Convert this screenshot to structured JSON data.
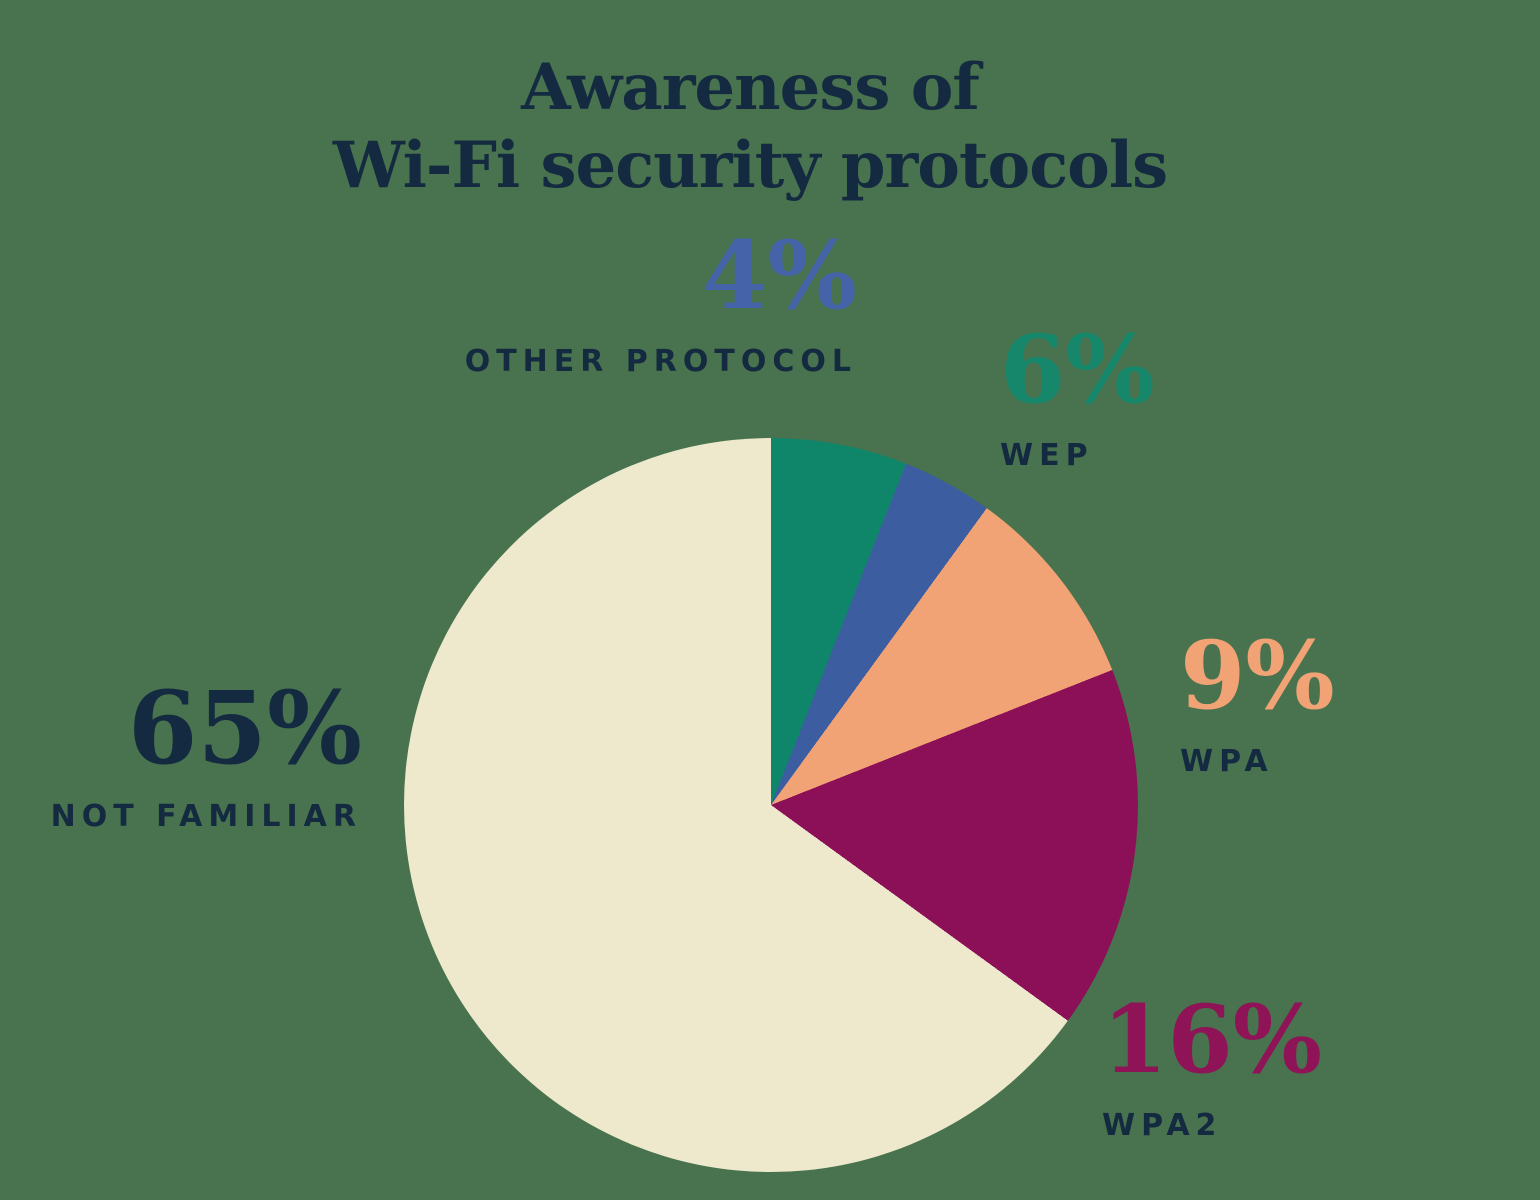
{
  "background_color": "#48734E",
  "label_color": "#132A40",
  "title": {
    "line1": "Awareness of",
    "line2": "Wi-Fi security protocols",
    "color": "#132A40"
  },
  "chart_data": {
    "type": "pie",
    "title": "Awareness of Wi-Fi security protocols",
    "start_angle_deg": 0,
    "direction": "clockwise",
    "legend_position": "around-pie",
    "slices": [
      {
        "label": "WEP",
        "value_pct": 6,
        "color": "#0F8569"
      },
      {
        "label": "OTHER PROTOCOL",
        "value_pct": 4,
        "color": "#3C5DA0"
      },
      {
        "label": "WPA",
        "value_pct": 9,
        "color": "#F2A376"
      },
      {
        "label": "WPA2",
        "value_pct": 16,
        "color": "#8B1057"
      },
      {
        "label": "NOT FAMILIAR",
        "value_pct": 65,
        "color": "#EEE9CD"
      }
    ],
    "callouts": [
      {
        "id": "other-protocol",
        "value_text": "4%",
        "label_text": "OTHER PROTOCOL",
        "value_color": "#4463A9"
      },
      {
        "id": "wep",
        "value_text": "6%",
        "label_text": "WEP",
        "value_color": "#17876C"
      },
      {
        "id": "wpa",
        "value_text": "9%",
        "label_text": "WPA",
        "value_color": "#F2A376"
      },
      {
        "id": "wpa2",
        "value_text": "16%",
        "label_text": "WPA2",
        "value_color": "#8E1457"
      },
      {
        "id": "not-familiar",
        "value_text": "65%",
        "label_text": "NOT FAMILIAR",
        "value_color": "#132A40"
      }
    ]
  }
}
